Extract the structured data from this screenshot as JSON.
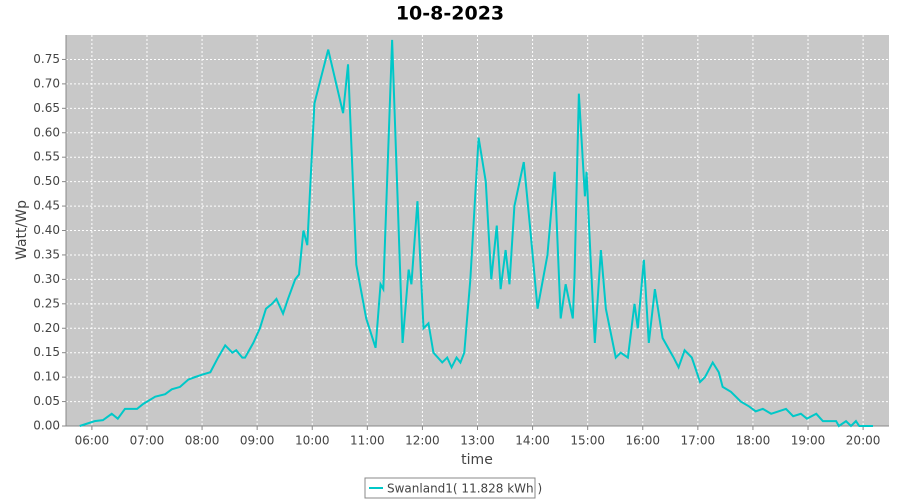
{
  "chart_data": {
    "type": "line",
    "title": "10-8-2023",
    "x_label": "time",
    "y_label": "Watt/Wp",
    "x": [
      5.78,
      6.05,
      6.2,
      6.36,
      6.47,
      6.6,
      6.82,
      6.93,
      7.15,
      7.33,
      7.45,
      7.6,
      7.75,
      7.87,
      8.0,
      8.15,
      8.29,
      8.42,
      8.55,
      8.62,
      8.73,
      8.78,
      8.93,
      9.05,
      9.16,
      9.27,
      9.35,
      9.47,
      9.56,
      9.69,
      9.76,
      9.84,
      9.91,
      10.04,
      10.13,
      10.29,
      10.56,
      10.65,
      10.8,
      10.98,
      11.15,
      11.24,
      11.29,
      11.45,
      11.64,
      11.75,
      11.8,
      11.91,
      12.02,
      12.11,
      12.2,
      12.36,
      12.45,
      12.53,
      12.62,
      12.69,
      12.76,
      12.87,
      13.02,
      13.15,
      13.25,
      13.35,
      13.42,
      13.51,
      13.58,
      13.67,
      13.84,
      13.96,
      14.09,
      14.27,
      14.4,
      14.51,
      14.6,
      14.73,
      14.76,
      14.84,
      14.95,
      14.98,
      15.05,
      15.13,
      15.24,
      15.33,
      15.51,
      15.6,
      15.73,
      15.85,
      15.91,
      16.02,
      16.11,
      16.22,
      16.36,
      16.56,
      16.65,
      16.76,
      16.89,
      16.98,
      17.04,
      17.13,
      17.27,
      17.38,
      17.45,
      17.6,
      17.78,
      17.93,
      18.05,
      18.18,
      18.33,
      18.6,
      18.73,
      18.87,
      18.98,
      19.15,
      19.27,
      19.51,
      19.56,
      19.69,
      19.78,
      19.87,
      19.93,
      20.18
    ],
    "series": [
      {
        "name": "Swanland1( 11.828 kWh )",
        "color": "#00c8c8",
        "values": [
          0,
          0.01,
          0.012,
          0.025,
          0.015,
          0.035,
          0.035,
          0.045,
          0.06,
          0.065,
          0.075,
          0.08,
          0.095,
          0.1,
          0.105,
          0.11,
          0.14,
          0.165,
          0.15,
          0.155,
          0.14,
          0.14,
          0.17,
          0.2,
          0.24,
          0.25,
          0.26,
          0.23,
          0.26,
          0.3,
          0.31,
          0.4,
          0.37,
          0.66,
          0.7,
          0.77,
          0.64,
          0.74,
          0.33,
          0.22,
          0.16,
          0.29,
          0.28,
          0.79,
          0.17,
          0.32,
          0.29,
          0.46,
          0.2,
          0.21,
          0.15,
          0.13,
          0.14,
          0.12,
          0.14,
          0.13,
          0.15,
          0.3,
          0.59,
          0.5,
          0.3,
          0.41,
          0.28,
          0.36,
          0.29,
          0.45,
          0.54,
          0.4,
          0.24,
          0.35,
          0.52,
          0.22,
          0.29,
          0.22,
          0.3,
          0.68,
          0.47,
          0.52,
          0.35,
          0.17,
          0.36,
          0.24,
          0.14,
          0.15,
          0.14,
          0.25,
          0.2,
          0.34,
          0.17,
          0.28,
          0.18,
          0.14,
          0.12,
          0.155,
          0.14,
          0.11,
          0.09,
          0.1,
          0.13,
          0.11,
          0.08,
          0.07,
          0.05,
          0.04,
          0.03,
          0.035,
          0.025,
          0.035,
          0.02,
          0.025,
          0.015,
          0.025,
          0.01,
          0.01,
          0,
          0.01,
          0,
          0.01,
          0,
          0
        ]
      }
    ],
    "xlim": [
      5.53,
      20.47
    ],
    "xticks": [
      {
        "value": 6,
        "label": "06:00"
      },
      {
        "value": 7,
        "label": "07:00"
      },
      {
        "value": 8,
        "label": "08:00"
      },
      {
        "value": 9,
        "label": "09:00"
      },
      {
        "value": 10,
        "label": "10:00"
      },
      {
        "value": 11,
        "label": "11:00"
      },
      {
        "value": 12,
        "label": "12:00"
      },
      {
        "value": 13,
        "label": "13:00"
      },
      {
        "value": 14,
        "label": "14:00"
      },
      {
        "value": 15,
        "label": "15:00"
      },
      {
        "value": 16,
        "label": "16:00"
      },
      {
        "value": 17,
        "label": "17:00"
      },
      {
        "value": 18,
        "label": "18:00"
      },
      {
        "value": 19,
        "label": "19:00"
      },
      {
        "value": 20,
        "label": "20:00"
      }
    ],
    "ylim": [
      0,
      0.8
    ],
    "yticks": [
      {
        "value": 0,
        "label": "0.00"
      },
      0.05,
      {
        "value": 0.1,
        "label": "0.10"
      },
      0.15,
      {
        "value": 0.2,
        "label": "0.20"
      },
      0.25,
      {
        "value": 0.3,
        "label": "0.30"
      },
      0.35,
      {
        "value": 0.4,
        "label": "0.40"
      },
      0.45,
      {
        "value": 0.5,
        "label": "0.50"
      },
      0.55,
      {
        "value": 0.6,
        "label": "0.60"
      },
      0.65,
      {
        "value": 0.7,
        "label": "0.70"
      },
      0.75
    ],
    "grid": true,
    "legend": "bottom"
  }
}
